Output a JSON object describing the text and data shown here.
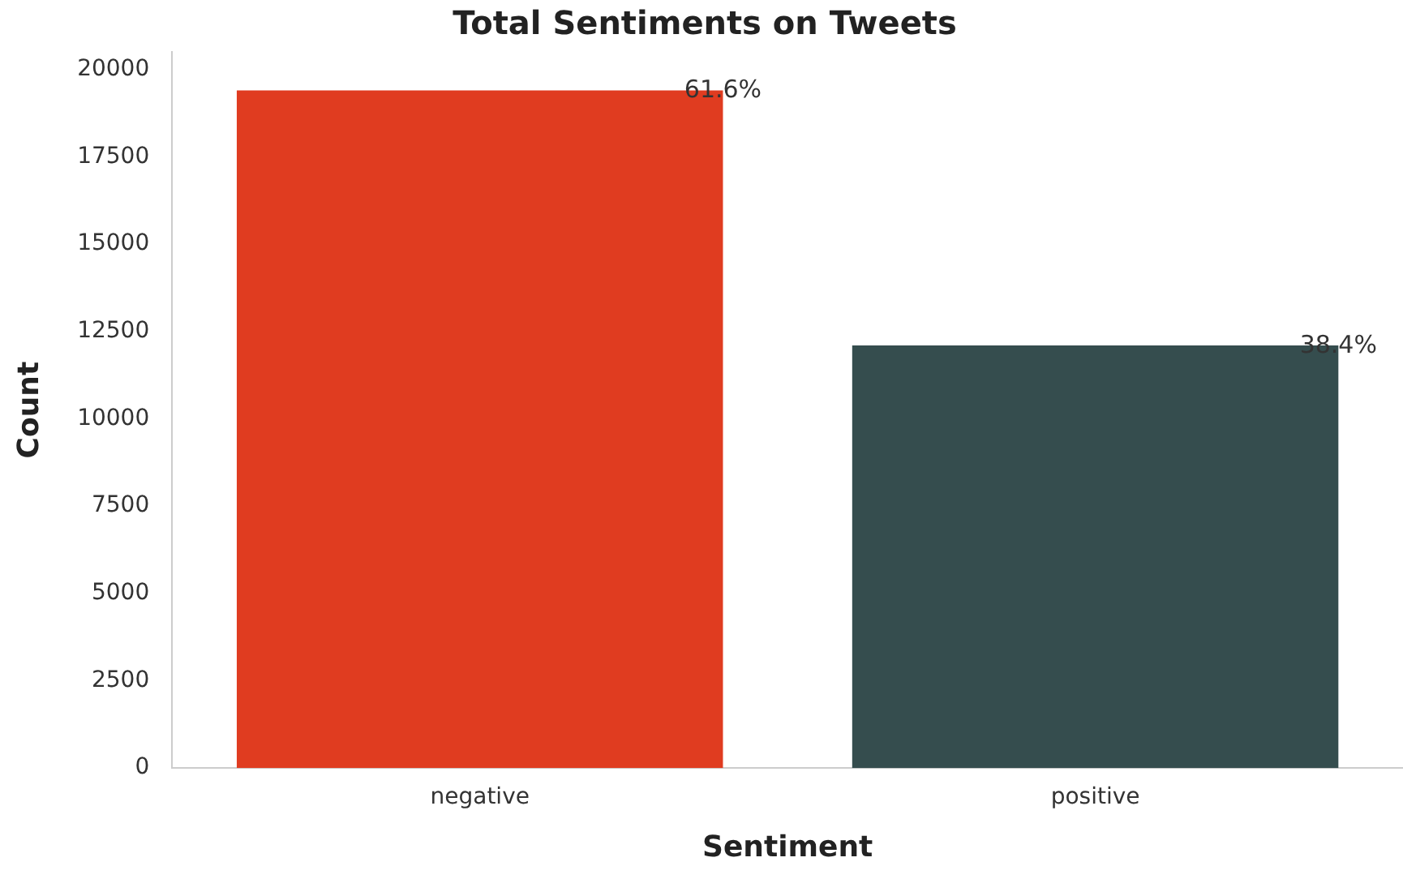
{
  "chart_data": {
    "type": "bar",
    "title": "Total Sentiments on Tweets",
    "xlabel": "Sentiment",
    "ylabel": "Count",
    "categories": [
      "negative",
      "positive"
    ],
    "values": [
      19400,
      12100
    ],
    "colors": [
      "#e03c20",
      "#354d4e"
    ],
    "annotations": [
      "61.6%",
      "38.4%"
    ],
    "ylim": [
      0,
      20500
    ],
    "yticks": [
      0,
      2500,
      5000,
      7500,
      10000,
      12500,
      15000,
      17500,
      20000
    ],
    "grid": false,
    "legend": false
  }
}
